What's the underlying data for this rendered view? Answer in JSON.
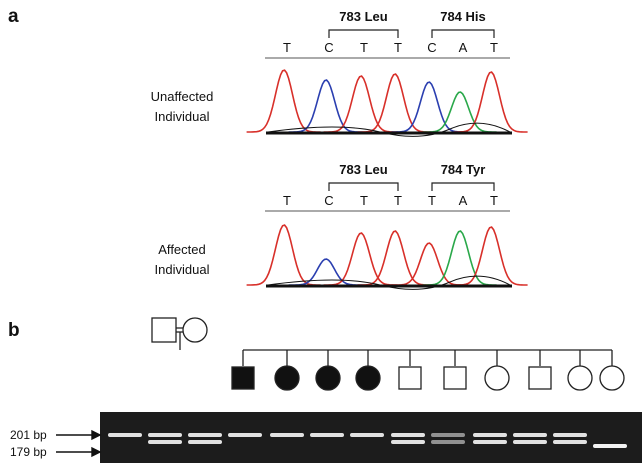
{
  "panel_a": {
    "label": "a",
    "tracks": [
      {
        "codons": [
          "783 Leu",
          "784 His"
        ],
        "bases": [
          "T",
          "C",
          "T",
          "T",
          "C",
          "A",
          "T"
        ],
        "sample": [
          "Unaffected",
          "Individual"
        ]
      },
      {
        "codons": [
          "783 Leu",
          "784 Tyr"
        ],
        "bases": [
          "T",
          "C",
          "T",
          "T",
          "T",
          "A",
          "T"
        ],
        "sample": [
          "Affected",
          "Individual"
        ]
      }
    ]
  },
  "panel_b": {
    "label": "b",
    "gel_markers": [
      "201 bp",
      "179 bp"
    ]
  }
}
